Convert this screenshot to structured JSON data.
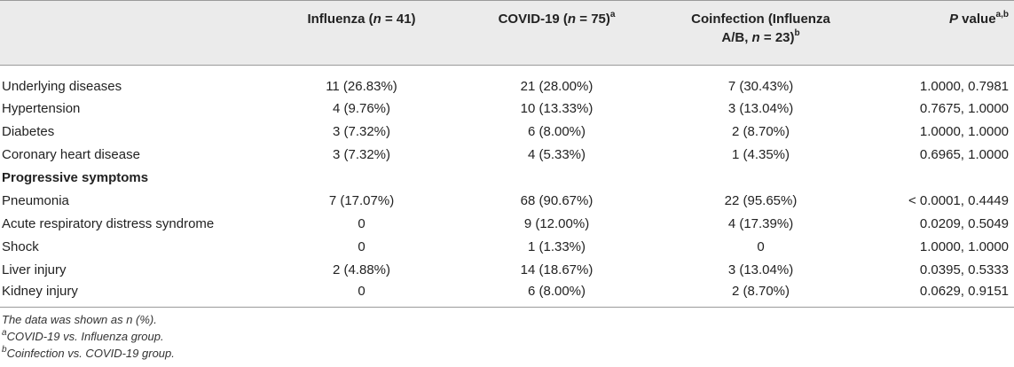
{
  "table": {
    "headers": {
      "col0": "",
      "col1_pre": "Influenza (",
      "col1_n": "n",
      "col1_post": " = 41)",
      "col2_pre": "COVID-19 (",
      "col2_n": "n",
      "col2_post": " = 75)",
      "col2_sup": "a",
      "col3_line1": "Coinfection (Influenza",
      "col3_line2_pre": "A/B, ",
      "col3_n": "n",
      "col3_line2_post": " = 23)",
      "col3_sup": "b",
      "col4_p": "P",
      "col4_post": " value",
      "col4_sup": "a,b"
    },
    "rows": [
      {
        "label": "Underlying diseases",
        "influenza": "11 (26.83%)",
        "covid": "21 (28.00%)",
        "coinfection": "7 (30.43%)",
        "p": "1.0000, 0.7981"
      },
      {
        "label": "Hypertension",
        "influenza": "4 (9.76%)",
        "covid": "10 (13.33%)",
        "coinfection": "3 (13.04%)",
        "p": "0.7675, 1.0000"
      },
      {
        "label": "Diabetes",
        "influenza": "3 (7.32%)",
        "covid": "6 (8.00%)",
        "coinfection": "2 (8.70%)",
        "p": "1.0000, 1.0000"
      },
      {
        "label": "Coronary heart disease",
        "influenza": "3 (7.32%)",
        "covid": "4 (5.33%)",
        "coinfection": "1 (4.35%)",
        "p": "0.6965, 1.0000"
      }
    ],
    "section_label": "Progressive symptoms",
    "rows2": [
      {
        "label": "Pneumonia",
        "influenza": "7 (17.07%)",
        "covid": "68 (90.67%)",
        "coinfection": "22 (95.65%)",
        "p": "< 0.0001, 0.4449"
      },
      {
        "label": "Acute respiratory distress syndrome",
        "influenza": "0",
        "covid": "9 (12.00%)",
        "coinfection": "4 (17.39%)",
        "p": "0.0209, 0.5049"
      },
      {
        "label": "Shock",
        "influenza": "0",
        "covid": "1 (1.33%)",
        "coinfection": "0",
        "p": "1.0000, 1.0000"
      },
      {
        "label": "Liver injury",
        "influenza": "2 (4.88%)",
        "covid": "14 (18.67%)",
        "coinfection": "3 (13.04%)",
        "p": "0.0395, 0.5333"
      },
      {
        "label": "Kidney injury",
        "influenza": "0",
        "covid": "6 (8.00%)",
        "coinfection": "2 (8.70%)",
        "p": "0.0629, 0.9151"
      }
    ]
  },
  "notes": {
    "line1": "The data was shown as n (%).",
    "line2_sup": "a",
    "line2": "COVID-19 vs. Influenza group.",
    "line3_sup": "b",
    "line3": "Coinfection vs. COVID-19 group."
  }
}
